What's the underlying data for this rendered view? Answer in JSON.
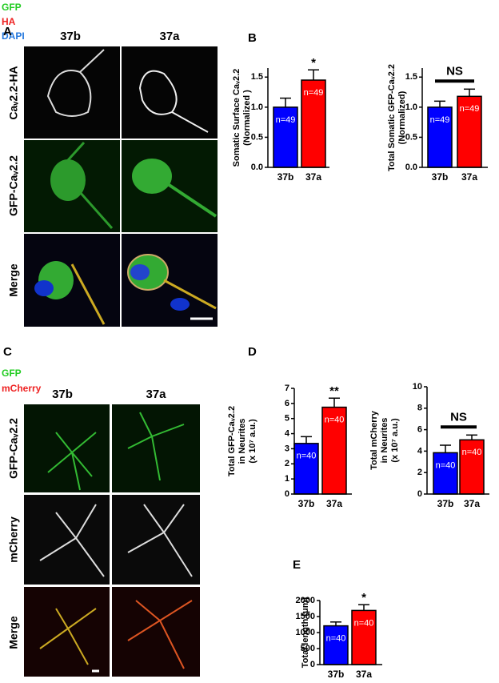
{
  "figure": {
    "panel_a": {
      "label": "A",
      "channels": [
        "GFP",
        "HA",
        "DAPI"
      ],
      "columns": [
        "37b",
        "37a"
      ],
      "rows": [
        "Caᵥ2.2-HA",
        "GFP-Caᵥ2.2",
        "Merge"
      ]
    },
    "panel_b": {
      "label": "B"
    },
    "panel_c": {
      "label": "C",
      "channels": [
        "GFP",
        "mCherry"
      ],
      "columns": [
        "37b",
        "37a"
      ],
      "rows": [
        "GFP-Caᵥ2.2",
        "mCherry",
        "Merge"
      ]
    },
    "panel_d": {
      "label": "D"
    },
    "panel_e": {
      "label": "E"
    }
  },
  "chart_data": [
    {
      "type": "bar",
      "ylabel": [
        "Somatic Surface Caᵥ2.2",
        "(Normalized )"
      ],
      "categories": [
        "37b",
        "37a"
      ],
      "values": [
        1.0,
        1.45
      ],
      "errors": [
        0.15,
        0.17
      ],
      "colors": [
        "#0000ff",
        "#ff0000"
      ],
      "bar_labels": [
        "n=49",
        "n=49"
      ],
      "significance": "*",
      "bracket": false,
      "ylim": [
        0,
        1.65
      ],
      "yticks": [
        {
          "value": 0,
          "label": "0.0"
        },
        0.5,
        {
          "value": 1,
          "label": "1.0"
        },
        1.5
      ]
    },
    {
      "type": "bar",
      "ylabel": [
        "Total Somatic GFP-Caᵥ2.2",
        "(Normalized)"
      ],
      "categories": [
        "37b",
        "37a"
      ],
      "values": [
        1.0,
        1.18
      ],
      "errors": [
        0.1,
        0.12
      ],
      "colors": [
        "#0000ff",
        "#ff0000"
      ],
      "bar_labels": [
        "n=49",
        "n=49"
      ],
      "significance": "NS",
      "bracket": true,
      "ylim": [
        0,
        1.65
      ],
      "yticks": [
        {
          "value": 0,
          "label": "0.0"
        },
        0.5,
        {
          "value": 1,
          "label": "1.0"
        },
        1.5
      ]
    },
    {
      "type": "bar",
      "ylabel": [
        "Total GFP-Caᵥ2.2",
        "in Neurites",
        "(x 10⁷ a.u.)"
      ],
      "categories": [
        "37b",
        "37a"
      ],
      "values": [
        3.35,
        5.75
      ],
      "errors": [
        0.45,
        0.6
      ],
      "colors": [
        "#0000ff",
        "#ff0000"
      ],
      "bar_labels": [
        "n=40",
        "n=40"
      ],
      "significance": "**",
      "bracket": false,
      "ylim": [
        0,
        7
      ],
      "yticks": [
        0,
        1,
        2,
        3,
        4,
        5,
        6,
        7
      ]
    },
    {
      "type": "bar",
      "ylabel": [
        "Total mCherry",
        "in Neurites",
        "(x 10⁷ a.u.)"
      ],
      "categories": [
        "37b",
        "37a"
      ],
      "values": [
        3.85,
        5.05
      ],
      "errors": [
        0.7,
        0.45
      ],
      "colors": [
        "#0000ff",
        "#ff0000"
      ],
      "bar_labels": [
        "n=40",
        "n=40"
      ],
      "significance": "NS",
      "bracket": true,
      "ylim": [
        0,
        10
      ],
      "yticks": [
        0,
        2,
        4,
        6,
        8,
        10
      ]
    },
    {
      "type": "bar",
      "ylabel": [
        "Total length (μm)"
      ],
      "categories": [
        "37b",
        "37a"
      ],
      "values": [
        1210,
        1690
      ],
      "errors": [
        120,
        180
      ],
      "colors": [
        "#0000ff",
        "#ff0000"
      ],
      "bar_labels": [
        "n=40",
        "n=40"
      ],
      "significance": "*",
      "bracket": false,
      "ylim": [
        0,
        2000
      ],
      "yticks": [
        0,
        500,
        1000,
        1500,
        2000
      ]
    }
  ]
}
